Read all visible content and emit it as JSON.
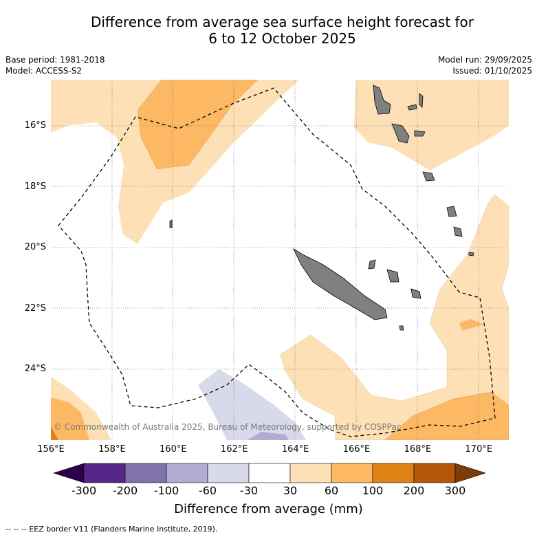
{
  "chart_data": {
    "type": "heatmap",
    "title": "Difference from average sea surface height forecast for\n6 to 12 October 2025",
    "title_lines": [
      "Difference from average sea surface height forecast for",
      "6 to 12 October 2025"
    ],
    "meta_left": [
      "Base period: 1981-2018",
      "Model: ACCESS-S2"
    ],
    "meta_right": [
      "Model run: 29/09/2025",
      "Issued: 01/10/2025"
    ],
    "x_ticks": [
      "156°E",
      "158°E",
      "160°E",
      "162°E",
      "164°E",
      "166°E",
      "168°E",
      "170°E"
    ],
    "y_ticks": [
      "16°S",
      "18°S",
      "20°S",
      "22°S",
      "24°S"
    ],
    "xlim": [
      156,
      171
    ],
    "ylim": [
      -26.3,
      -14.5
    ],
    "colorbar": {
      "label": "Difference from average (mm)",
      "ticks": [
        "-300",
        "-200",
        "-100",
        "-60",
        "-30",
        "30",
        "60",
        "100",
        "200",
        "300"
      ],
      "colors": [
        "#2d004b",
        "#542788",
        "#8073ac",
        "#b2abd2",
        "#d8daeb",
        "#ffffff",
        "#fee0b6",
        "#fdb863",
        "#e08214",
        "#b35806",
        "#7f3b08"
      ]
    },
    "copyright": "© Commonwealth of Australia 2025, Bureau of Meteorology, supported by COSPPac",
    "footer": "--  --  -- EEZ border V11 (Flanders Marine Institute, 2019)."
  }
}
